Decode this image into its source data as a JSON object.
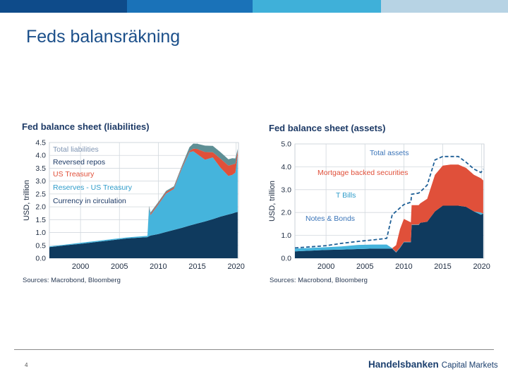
{
  "slide": {
    "title": "Feds balansräkning",
    "page_number": "4",
    "logo_brand": "Handelsbanken",
    "logo_sub": "Capital Markets",
    "topbar_colors": [
      "#0e4b8a",
      "#1a72b8",
      "#3fb0d9",
      "#b7d3e4"
    ]
  },
  "colors": {
    "dark_navy": "#0f3a5e",
    "light_blue": "#45b4dc",
    "red": "#e0503a",
    "teal": "#5e8f95",
    "dashed_line": "#1e5f96",
    "title_text": "#1d3a66"
  },
  "chart_data": [
    {
      "type": "area",
      "title": "Fed balance sheet (liabilities)",
      "source": "Sources: Macrobond, Bloomberg",
      "ylabel": "USD, trillion",
      "ylim": [
        0,
        4.5
      ],
      "xlim": [
        1996,
        2020.3
      ],
      "yticks": [
        "0.0",
        "0.5",
        "1.0",
        "1.5",
        "2.0",
        "2.5",
        "3.0",
        "3.5",
        "4.0",
        "4.5"
      ],
      "xticks": [
        "2000",
        "2005",
        "2010",
        "2015",
        "2020"
      ],
      "grid": true,
      "legend_position": "top-left",
      "stacked": true,
      "x": [
        1996,
        1998,
        2000,
        2002,
        2004,
        2006,
        2008.6,
        2008.8,
        2009,
        2010,
        2011,
        2012,
        2013,
        2014,
        2014.5,
        2015,
        2016,
        2017,
        2018,
        2019,
        2019.5,
        2019.9,
        2020.2
      ],
      "series": [
        {
          "name": "Currency in circulation",
          "color": "#0f3a5e",
          "values": [
            0.43,
            0.5,
            0.56,
            0.63,
            0.7,
            0.77,
            0.82,
            0.86,
            0.88,
            0.94,
            1.02,
            1.1,
            1.18,
            1.27,
            1.31,
            1.35,
            1.43,
            1.52,
            1.62,
            1.7,
            1.74,
            1.78,
            1.8
          ]
        },
        {
          "name": "Reserves - US Treasury",
          "color": "#45b4dc",
          "values": [
            0.03,
            0.03,
            0.04,
            0.04,
            0.04,
            0.04,
            0.05,
            1.1,
            0.8,
            1.15,
            1.5,
            1.6,
            2.3,
            2.85,
            2.85,
            2.7,
            2.4,
            2.4,
            1.9,
            1.5,
            1.5,
            1.55,
            2.2
          ]
        },
        {
          "name": "US Treasury",
          "color": "#e0503a",
          "values": [
            0.0,
            0.0,
            0.0,
            0.0,
            0.0,
            0.0,
            0.0,
            0.02,
            0.05,
            0.05,
            0.05,
            0.05,
            0.05,
            0.05,
            0.1,
            0.2,
            0.3,
            0.2,
            0.35,
            0.4,
            0.4,
            0.35,
            0.15
          ]
        },
        {
          "name": "Reversed repos",
          "color": "#5e8f95",
          "values": [
            0.0,
            0.0,
            0.0,
            0.0,
            0.0,
            0.0,
            0.0,
            0.05,
            0.05,
            0.05,
            0.05,
            0.05,
            0.05,
            0.15,
            0.2,
            0.2,
            0.25,
            0.25,
            0.25,
            0.25,
            0.25,
            0.2,
            0.1
          ]
        }
      ],
      "legend": [
        "Total liabilities",
        "Reversed repos",
        "US Treasury",
        "Reserves - US Treasury",
        "Currency in circulation"
      ]
    },
    {
      "type": "area",
      "title": "Fed balance sheet (assets)",
      "source": "Sources: Macrobond, Bloomberg",
      "ylabel": "USD, trillion",
      "ylim": [
        0,
        5.0
      ],
      "xlim": [
        1996,
        2020.3
      ],
      "yticks": [
        "0.0",
        "1.0",
        "2.0",
        "3.0",
        "4.0",
        "5.0"
      ],
      "xticks": [
        "2000",
        "2005",
        "2010",
        "2015",
        "2020"
      ],
      "grid": true,
      "stacked": true,
      "x": [
        1996,
        1998,
        2000,
        2002,
        2004,
        2006,
        2007.8,
        2008.5,
        2009,
        2009.5,
        2010,
        2010.9,
        2011,
        2011.9,
        2012.1,
        2013,
        2014,
        2015,
        2016,
        2017,
        2018,
        2019,
        2019.9,
        2020.2
      ],
      "series": [
        {
          "name": "Notes & Bonds",
          "color": "#0f3a5e",
          "values": [
            0.3,
            0.33,
            0.36,
            0.38,
            0.4,
            0.42,
            0.42,
            0.42,
            0.25,
            0.45,
            0.7,
            0.7,
            1.45,
            1.45,
            1.55,
            1.6,
            2.05,
            2.3,
            2.3,
            2.3,
            2.25,
            2.05,
            1.9,
            1.95
          ]
        },
        {
          "name": "T Bills",
          "color": "#45b4dc",
          "values": [
            0.12,
            0.12,
            0.12,
            0.14,
            0.18,
            0.18,
            0.18,
            0.02,
            0.02,
            0.02,
            0.02,
            0.02,
            0.02,
            0.02,
            0.0,
            0.0,
            0.0,
            0.0,
            0.0,
            0.0,
            0.0,
            0.0,
            0.1,
            0.0
          ]
        },
        {
          "name": "Mortgage backed securities",
          "color": "#e0503a",
          "values": [
            0.0,
            0.0,
            0.0,
            0.0,
            0.0,
            0.0,
            0.0,
            0.0,
            0.3,
            0.8,
            1.0,
            0.85,
            0.85,
            0.85,
            0.85,
            1.0,
            1.6,
            1.75,
            1.8,
            1.8,
            1.7,
            1.6,
            1.5,
            1.45
          ]
        }
      ],
      "total_assets": {
        "name": "Total assets",
        "values": [
          0.45,
          0.5,
          0.55,
          0.65,
          0.73,
          0.8,
          0.87,
          1.9,
          2.05,
          2.2,
          2.35,
          2.45,
          2.8,
          2.85,
          2.9,
          3.2,
          4.3,
          4.45,
          4.45,
          4.45,
          4.2,
          3.9,
          3.75,
          3.9
        ]
      },
      "legend": [
        "Total assets",
        "Mortgage backed securities",
        "T Bills",
        "Notes & Bonds"
      ]
    }
  ]
}
